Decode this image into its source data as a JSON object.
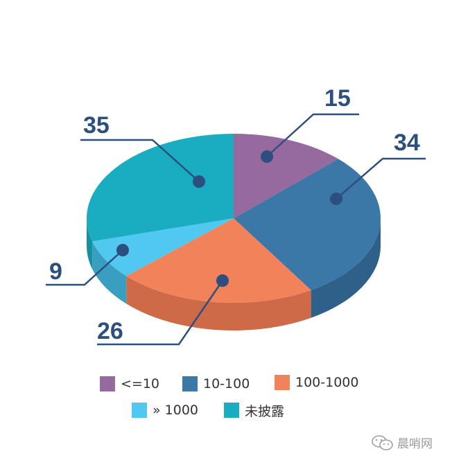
{
  "chart_data": {
    "type": "pie",
    "categories": [
      "<=10",
      "10-100",
      "100-1000",
      "» 1000",
      "未披露"
    ],
    "values": [
      15,
      34,
      26,
      9,
      35
    ],
    "colors": {
      "top": [
        "#96699f",
        "#3b78a8",
        "#f2825a",
        "#50c8f0",
        "#1aacc0"
      ],
      "side": [
        "#7a5488",
        "#2e6089",
        "#cf6a48",
        "#3a9ec0",
        "#1590a0"
      ]
    },
    "legend_position": "bottom"
  },
  "legend": [
    {
      "label": "<=10",
      "color": "#96699f"
    },
    {
      "label": "10-100",
      "color": "#3b78a8"
    },
    {
      "label": "100-1000",
      "color": "#f2825a"
    },
    {
      "label": "» 1000",
      "color": "#50c8f0"
    },
    {
      "label": "未披露",
      "color": "#1aacc0"
    }
  ],
  "watermark": {
    "text": "晨哨网",
    "icon": "wechat-icon"
  }
}
